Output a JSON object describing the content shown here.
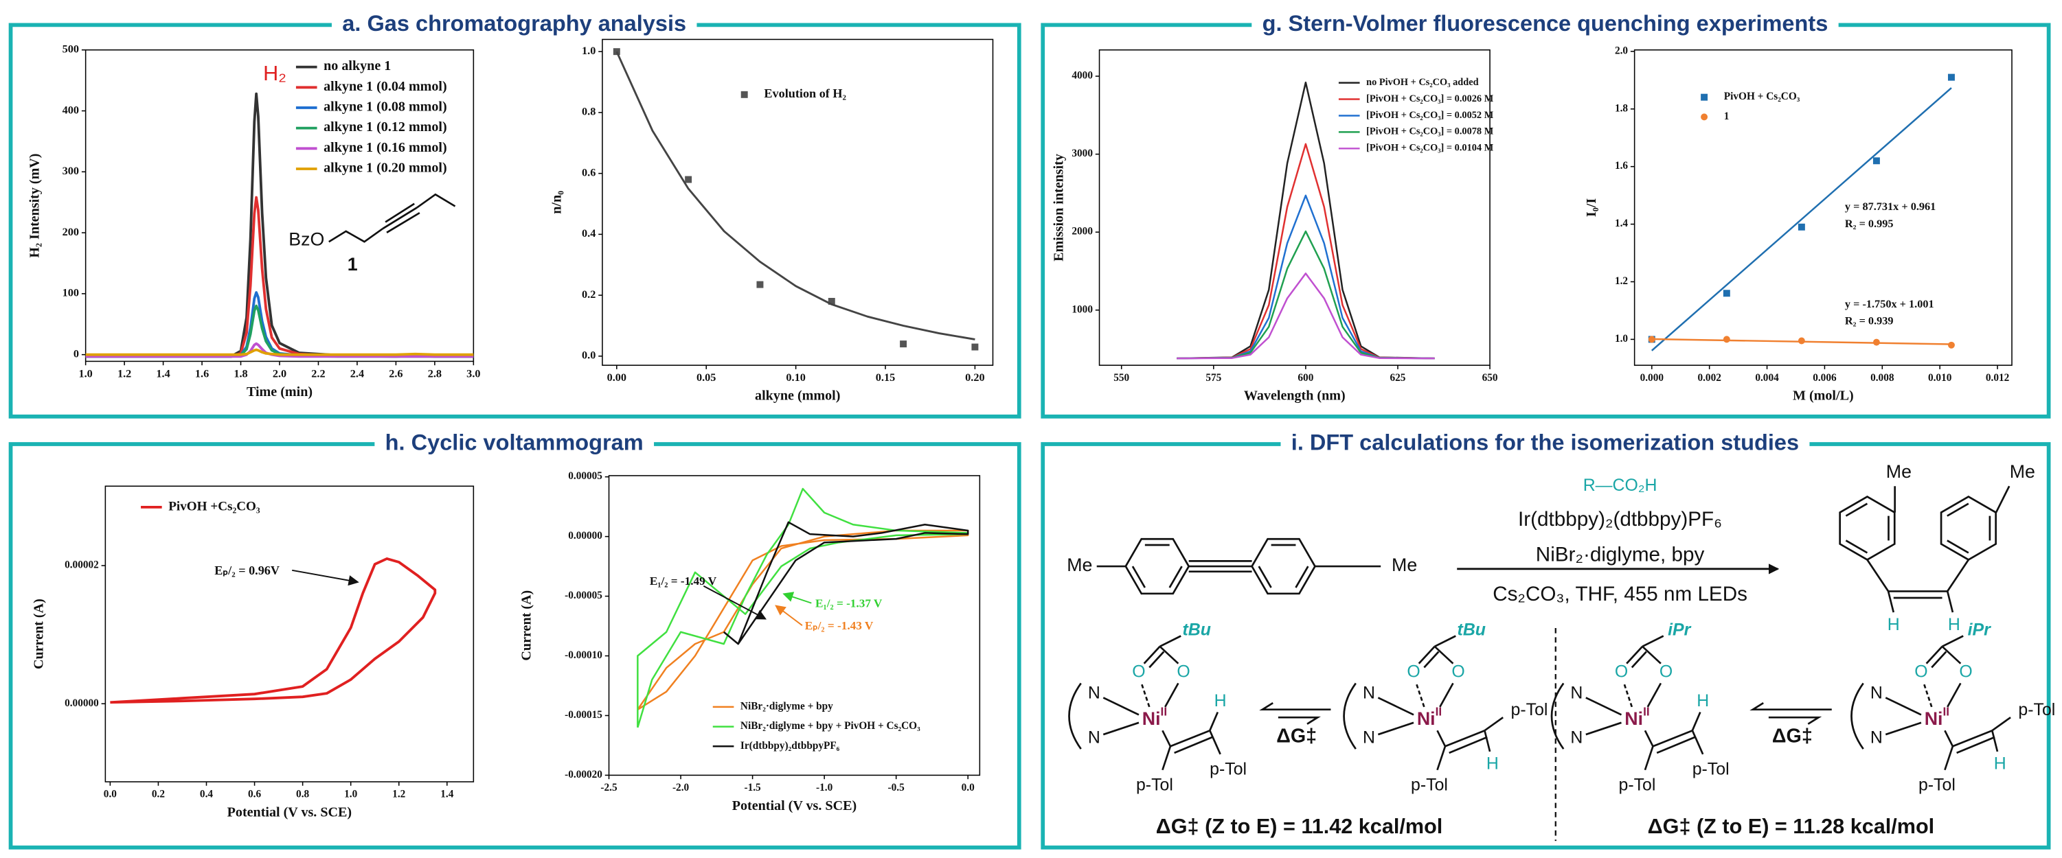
{
  "panels": [
    "a. Gas chromatography analysis",
    "g. Stern-Volmer fluorescence quenching experiments",
    "h. Cyclic voltammogram",
    "i. DFT calculations for the isomerization studies"
  ],
  "chart_data": [
    {
      "type": "line",
      "x_label": "Time (min)",
      "y_label": "H₂ Intensity (mV)",
      "xlim": [
        1.0,
        3.0
      ],
      "ylim": [
        -11,
        500
      ],
      "xticks": [
        {
          "value": 1.0,
          "label": "1.0"
        },
        1.2,
        1.4,
        1.6,
        1.8,
        {
          "value": 2.0,
          "label": "2.0"
        },
        2.2,
        2.4,
        2.6,
        2.8,
        {
          "value": 3.0,
          "label": "3.0"
        }
      ],
      "yticks": [
        0,
        100,
        200,
        300,
        400,
        500
      ],
      "x": [
        1.0,
        1.5,
        1.75,
        1.8,
        1.83,
        1.85,
        1.87,
        1.88,
        1.89,
        1.91,
        1.93,
        1.96,
        2.0,
        2.1,
        2.3,
        2.6,
        2.7,
        2.8,
        3.0
      ],
      "series": [
        {
          "name": "no alkyne 1",
          "type": "line",
          "color": "#333333",
          "values": [
            -3,
            -3,
            -3,
            6,
            61,
            190,
            382,
            428,
            391,
            233,
            126,
            48,
            19,
            3,
            -1,
            -3,
            0,
            -3,
            -3
          ]
        },
        {
          "name": "alkyne 1 (0.04 mmol)",
          "type": "line",
          "color": "#e03030",
          "values": [
            -3,
            -3,
            -3,
            2,
            36,
            114,
            232,
            258,
            237,
            141,
            75,
            28,
            10,
            1,
            -2,
            -3,
            -2,
            -3,
            -3
          ]
        },
        {
          "name": "alkyne 1 (0.08 mmol)",
          "type": "line",
          "color": "#1f6fd0",
          "values": [
            -3,
            -3,
            -3,
            -1,
            13,
            44,
            92,
            102,
            94,
            55,
            29,
            10,
            2,
            -1,
            -2,
            -3,
            -2,
            -3,
            -3
          ]
        },
        {
          "name": "alkyne 1 (0.12 mmol)",
          "type": "line",
          "color": "#20a060",
          "values": [
            -3,
            -3,
            -3,
            -1,
            9,
            34,
            72,
            80,
            73,
            43,
            22,
            7,
            1,
            -2,
            -3,
            -3,
            -3,
            -3,
            -3
          ]
        },
        {
          "name": "alkyne 1 (0.16 mmol)",
          "type": "line",
          "color": "#c050d0",
          "values": [
            -3,
            -3,
            -3,
            -3,
            0,
            6,
            16,
            18,
            16,
            9,
            3,
            0,
            -2,
            -3,
            -3,
            -3,
            -3,
            -3,
            -3
          ]
        },
        {
          "name": "alkyne 1 (0.20 mmol)",
          "type": "line",
          "color": "#e0a000",
          "values": [
            0,
            0,
            0,
            0,
            1,
            4,
            7,
            8,
            7,
            4,
            2,
            1,
            0,
            0,
            0,
            0,
            1,
            0,
            0
          ]
        }
      ],
      "annotations": [
        {
          "text": "H₂",
          "color": "#e02020"
        },
        {
          "text": "BzO"
        },
        {
          "text": "1"
        }
      ]
    },
    {
      "type": "scatter",
      "x_label": "alkyne (mmol)",
      "y_label": "n/n₀",
      "xlim": [
        -0.008,
        0.21
      ],
      "ylim": [
        -0.03,
        1.04
      ],
      "xticks": [
        {
          "value": 0,
          "label": "0.00"
        },
        0.05,
        {
          "value": 0.1,
          "label": "0.10"
        },
        0.15,
        {
          "value": 0.2,
          "label": "0.20"
        }
      ],
      "yticks": [
        {
          "value": 0,
          "label": "0.0"
        },
        0.2,
        0.4,
        0.6,
        0.8,
        {
          "value": 1,
          "label": "1.0"
        }
      ],
      "series": [
        {
          "name": "Evolution of H₂",
          "type": "scatter",
          "marker": "square",
          "color": "#555555",
          "x": [
            0,
            0.04,
            0.08,
            0.12,
            0.16,
            0.2
          ],
          "values": [
            1.0,
            0.58,
            0.235,
            0.18,
            0.04,
            0.03
          ]
        },
        {
          "type": "line",
          "color": "#444444",
          "x": [
            0,
            0.02,
            0.04,
            0.06,
            0.08,
            0.1,
            0.12,
            0.14,
            0.16,
            0.18,
            0.2
          ],
          "values": [
            1.0,
            0.74,
            0.55,
            0.41,
            0.31,
            0.23,
            0.17,
            0.13,
            0.1,
            0.075,
            0.055
          ]
        }
      ],
      "annotations": []
    },
    {
      "type": "line",
      "x_label": "Wavelength (nm)",
      "y_label": "Emission intensity",
      "xlim": [
        544,
        650
      ],
      "ylim": [
        292,
        4337
      ],
      "xticks": [
        550,
        575,
        600,
        625,
        650
      ],
      "yticks": [
        1000,
        2000,
        3000,
        4000
      ],
      "x": [
        565,
        580,
        585,
        590,
        595,
        600,
        605,
        610,
        615,
        620,
        635
      ],
      "series": [
        {
          "name": "no PivOH + Cs₂CO₃ added",
          "type": "line",
          "color": "#222222",
          "values": [
            380,
            394,
            536,
            1261,
            2883,
            3920,
            2883,
            1261,
            536,
            394,
            380
          ]
        },
        {
          "name": "[PivOH + Cs₂CO₃] = 0.0026 M",
          "type": "line",
          "color": "#e03030",
          "values": [
            380,
            391,
            501,
            1065,
            2324,
            3130,
            2324,
            1065,
            501,
            391,
            380
          ]
        },
        {
          "name": "[PivOH + Cs₂CO₃] = 0.0052 M",
          "type": "line",
          "color": "#2070d0",
          "values": [
            380,
            388,
            472,
            900,
            1858,
            2470,
            1858,
            900,
            472,
            388,
            380
          ]
        },
        {
          "name": "[PivOH + Cs₂CO₃] = 0.0078 M",
          "type": "line",
          "color": "#20a050",
          "values": [
            380,
            387,
            452,
            786,
            1532,
            2010,
            1532,
            786,
            452,
            387,
            380
          ]
        },
        {
          "name": "[PivOH + Cs₂CO₃] = 0.0104 M",
          "type": "line",
          "color": "#c050d0",
          "values": [
            380,
            384,
            428,
            651,
            1151,
            1470,
            1151,
            651,
            428,
            384,
            380
          ]
        }
      ],
      "annotations": []
    },
    {
      "type": "scatter",
      "x_label": "M (mol/L)",
      "y_label": "I₀/I",
      "xlim": [
        -0.0006,
        0.0125
      ],
      "ylim": [
        0.91,
        2.005
      ],
      "xticks": [
        {
          "value": 0,
          "label": "0.000"
        },
        0.002,
        0.004,
        0.006,
        0.008,
        {
          "value": 0.01,
          "label": "0.010"
        },
        0.012
      ],
      "yticks": [
        {
          "value": 1,
          "label": "1.0"
        },
        1.2,
        1.4,
        1.6,
        1.8,
        {
          "value": 2,
          "label": "2.0"
        }
      ],
      "series": [
        {
          "name": "PivOH + Cs₂CO₃",
          "type": "scatter",
          "marker": "square",
          "color": "#1f6fb0",
          "x": [
            0,
            0.0026,
            0.0052,
            0.0078,
            0.0104
          ],
          "values": [
            1.0,
            1.16,
            1.39,
            1.62,
            1.91
          ]
        },
        {
          "name": "1",
          "type": "scatter",
          "marker": "circle",
          "color": "#f08030",
          "x": [
            0,
            0.0026,
            0.0052,
            0.0078,
            0.0104
          ],
          "values": [
            1.0,
            1.0,
            0.995,
            0.99,
            0.98
          ]
        },
        {
          "type": "line",
          "color": "#1f6fb0",
          "x": [
            0,
            0.0104
          ],
          "values": [
            0.961,
            1.873
          ]
        },
        {
          "type": "line",
          "color": "#f08030",
          "x": [
            0,
            0.0104
          ],
          "values": [
            1.001,
            0.983
          ]
        }
      ],
      "annotations": [
        {
          "text": "y = 87.731x + 0.961"
        },
        {
          "text": "R₂ = 0.995"
        },
        {
          "text": "y = -1.750x + 1.001"
        },
        {
          "text": "R₂ = 0.939"
        }
      ]
    },
    {
      "type": "line",
      "x_label": "Potential (V vs. SCE)",
      "y_label": "Current (A)",
      "xlim": [
        -0.02,
        1.51
      ],
      "ylim": [
        -1.13e-05,
        3.15e-05
      ],
      "xticks": [
        {
          "value": 0,
          "label": "0.0"
        },
        0.2,
        0.4,
        0.6,
        0.8,
        {
          "value": 1,
          "label": "1.0"
        },
        1.2,
        1.4
      ],
      "yticks": [
        {
          "value": 0,
          "label": "0.00000"
        },
        2e-05
      ],
      "series": [
        {
          "name": "PivOH +Cs₂CO₃",
          "type": "line",
          "color": "#e02020",
          "x": [
            0,
            0.3,
            0.6,
            0.8,
            0.9,
            1.0,
            1.05,
            1.1,
            1.15,
            1.2,
            1.28,
            1.35,
            1.35,
            1.3,
            1.2,
            1.1,
            1.0,
            0.9,
            0.8,
            0.6,
            0.3,
            0
          ],
          "values": [
            2e-07,
            8e-07,
            1.4e-06,
            2.5e-06,
            5e-06,
            1.1e-05,
            1.6e-05,
            2.02e-05,
            2.1e-05,
            2.05e-05,
            1.85e-05,
            1.65e-05,
            1.6e-05,
            1.25e-05,
            9e-06,
            6.5e-06,
            3.5e-06,
            1.5e-06,
            1e-06,
            7e-07,
            4e-07,
            2e-07
          ]
        }
      ],
      "annotations": [
        {
          "text": "Eₚ/₂ = 0.96V"
        }
      ]
    },
    {
      "type": "line",
      "x_label": "Potential (V vs. SCE)",
      "y_label": "Current (A)",
      "xlim": [
        -2.5,
        0.082
      ],
      "ylim": [
        -0.0002,
        5.1e-05
      ],
      "xticks": [
        -2.5,
        {
          "value": -2,
          "label": "-2.0"
        },
        -1.5,
        {
          "value": -1,
          "label": "-1.0"
        },
        -0.5,
        {
          "value": 0,
          "label": "0.0"
        }
      ],
      "yticks": [
        5e-05,
        {
          "value": 0,
          "label": "0.00000"
        },
        -5e-05,
        {
          "value": -0.0001,
          "label": "-0.00010"
        },
        -0.00015,
        {
          "value": -0.0002,
          "label": "-0.00020"
        }
      ],
      "series": [
        {
          "name": "NiBr₂·diglyme + bpy",
          "type": "line",
          "color": "#f08020",
          "x": [
            -2.3,
            -2.1,
            -1.9,
            -1.7,
            -1.5,
            -1.3,
            -1.0,
            -0.5,
            0,
            0,
            -0.5,
            -1.0,
            -1.3,
            -1.5,
            -1.7,
            -1.9,
            -2.1,
            -2.3
          ],
          "values": [
            -0.000145,
            -0.00011,
            -9e-05,
            -8e-05,
            -4e-05,
            -1e-05,
            0,
            5e-06,
            5e-06,
            1e-06,
            -2e-06,
            -3e-06,
            -8e-06,
            -2e-05,
            -6e-05,
            -0.0001,
            -0.00013,
            -0.000145
          ]
        },
        {
          "name": "NiBr₂·diglyme + bpy + PivOH + Cs₂CO₃",
          "type": "line",
          "color": "#40e040",
          "x": [
            -2.3,
            -2.2,
            -2.0,
            -1.85,
            -1.7,
            -1.55,
            -1.4,
            -1.25,
            -1.15,
            -1.0,
            -0.8,
            -0.5,
            0,
            0,
            -0.5,
            -0.9,
            -1.1,
            -1.3,
            -1.55,
            -1.7,
            -1.9,
            -2.1,
            -2.3,
            -2.3
          ],
          "values": [
            -0.00016,
            -0.00012,
            -8e-05,
            -8.5e-05,
            -9e-05,
            -5e-05,
            -1.5e-05,
            1e-05,
            4e-05,
            2e-05,
            1e-05,
            5e-06,
            3e-06,
            2e-06,
            1e-06,
            -5e-06,
            -1e-05,
            -2.5e-05,
            -6.5e-05,
            -5e-05,
            -3e-05,
            -8e-05,
            -0.0001,
            -0.00016
          ]
        },
        {
          "name": "Ir(dtbbpy)₂dtbbpyPF₆",
          "type": "line",
          "color": "#111111",
          "x": [
            -1.7,
            -1.6,
            -1.5,
            -1.4,
            -1.25,
            -1.1,
            -0.8,
            -0.6,
            -0.3,
            0,
            0,
            -0.3,
            -0.5,
            -1.0,
            -1.2,
            -1.4,
            -1.6,
            -1.7
          ],
          "values": [
            -8e-05,
            -9e-05,
            -6e-05,
            -3e-05,
            1.2e-05,
            2e-06,
            0,
            3e-06,
            1e-05,
            5e-06,
            2e-06,
            3e-06,
            -2e-06,
            -5e-06,
            -2e-05,
            -5.5e-05,
            -9e-05,
            -8e-05
          ]
        }
      ],
      "annotations": [
        {
          "text": "E₁/₂ = -1.49 V"
        },
        {
          "text": "E₁/₂ = -1.37 V",
          "color": "#30d030"
        },
        {
          "text": "Eₚ/₂ = -1.43 V",
          "color": "#f08020"
        }
      ]
    }
  ],
  "dft": {
    "reagent": "R—CO₂H",
    "conditions": [
      "Ir(dtbbpy)₂(dtbbpy)PF₆",
      "NiBr₂·diglyme, bpy",
      "Cs₂CO₃, THF, 455 nm LEDs"
    ],
    "methyl": "Me",
    "vinyl_h": "H",
    "barrier": "ΔG‡",
    "complexes": [
      {
        "ligand": "tBu",
        "metal": "Ni",
        "ox": "II",
        "n": "N",
        "o": "O",
        "h": "H",
        "aryl": "p-Tol"
      },
      {
        "ligand": "tBu",
        "metal": "Ni",
        "ox": "II",
        "n": "N",
        "o": "O",
        "h": "H",
        "aryl": "p-Tol"
      },
      {
        "ligand": "iPr",
        "metal": "Ni",
        "ox": "II",
        "n": "N",
        "o": "O",
        "h": "H",
        "aryl": "p-Tol"
      },
      {
        "ligand": "iPr",
        "metal": "Ni",
        "ox": "II",
        "n": "N",
        "o": "O",
        "h": "H",
        "aryl": "p-Tol"
      }
    ],
    "results": [
      "ΔG‡ (Z to E) = 11.42 kcal/mol",
      "ΔG‡ (Z to E) = 11.28 kcal/mol"
    ]
  }
}
